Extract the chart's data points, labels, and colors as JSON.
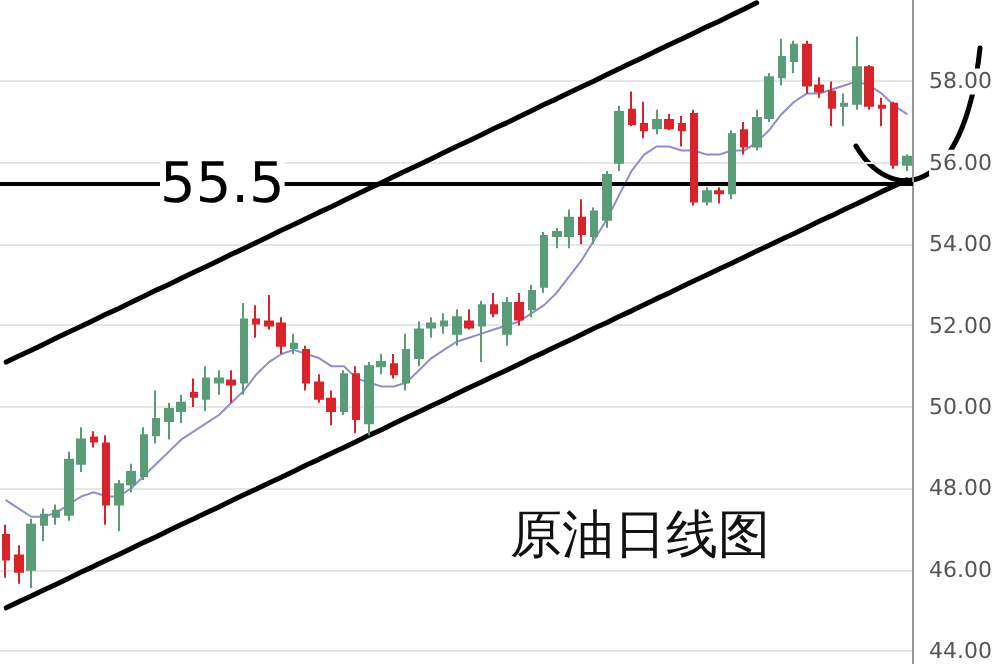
{
  "chart_data": {
    "type": "candlestick",
    "title": "原油日线图",
    "categories": [
      null,
      null,
      null,
      null,
      null,
      null,
      null,
      null,
      null,
      null,
      null,
      null,
      null,
      null,
      null,
      null,
      null,
      null,
      null,
      null,
      null,
      null,
      null,
      null,
      null,
      null,
      null,
      null,
      null,
      null,
      null,
      null,
      null,
      null,
      null,
      null,
      null,
      null,
      null,
      null,
      null,
      null,
      null,
      null,
      null,
      null,
      null,
      null,
      null,
      null,
      null,
      null,
      null,
      null,
      null,
      null,
      null,
      null,
      null,
      null,
      null,
      null,
      null,
      null,
      null,
      null,
      null,
      null,
      null,
      null,
      null,
      null,
      null
    ],
    "ylim": [
      43.7,
      60
    ],
    "yticks": [
      {
        "value": 44,
        "label": "44.00"
      },
      {
        "value": 46,
        "label": "46.00"
      },
      {
        "value": 48,
        "label": "48.00"
      },
      {
        "value": 50,
        "label": "50.00"
      },
      {
        "value": 52,
        "label": "52.00"
      },
      {
        "value": 54,
        "label": "54.00"
      },
      {
        "value": 56,
        "label": "56.00"
      },
      {
        "value": 58,
        "label": "58.00"
      }
    ],
    "grid": "y",
    "tick_labels": "y",
    "colors": [
      "#d9232b",
      "#d9232b",
      "#5b9c78",
      "#5b9c78",
      "#5b9c78",
      "#5b9c78",
      "#5b9c78",
      "#d9232b",
      "#d9232b",
      "#5b9c78",
      "#5b9c78",
      "#5b9c78",
      "#5b9c78",
      "#5b9c78",
      "#5b9c78",
      "#d9232b",
      "#5b9c78",
      "#5b9c78",
      "#d9232b",
      "#5b9c78",
      "#d9232b",
      "#d9232b",
      "#d9232b",
      "#5b9c78",
      "#d9232b",
      "#d9232b",
      "#d9232b",
      "#5b9c78",
      "#d9232b",
      "#5b9c78",
      "#5b9c78",
      "#d9232b",
      "#5b9c78",
      "#5b9c78",
      "#5b9c78",
      "#5b9c78",
      "#5b9c78",
      "#d9232b",
      "#5b9c78",
      "#d9232b",
      "#5b9c78",
      "#d9232b",
      "#5b9c78",
      "#5b9c78",
      "#5b9c78",
      "#5b9c78",
      "#d9232b",
      "#5b9c78",
      "#5b9c78",
      "#5b9c78",
      "#d9232b",
      "#d9232b",
      "#5b9c78",
      "#d9232b",
      "#d9232b",
      "#d9232b",
      "#5b9c78",
      "#d9232b",
      "#5b9c78",
      "#d9232b",
      "#5b9c78",
      "#5b9c78",
      "#5b9c78",
      "#5b9c78",
      "#d9232b",
      "#d9232b",
      "#d9232b",
      "#5b9c78",
      "#5b9c78",
      "#d9232b",
      "#d9232b",
      "#d9232b",
      "#5b9c78"
    ],
    "ref_lines": [
      {
        "axis": "y",
        "value": 55.5,
        "label": "55.5",
        "color": "#000000"
      }
    ],
    "ohlc": [
      [
        46.85,
        47.1,
        45.8,
        46.25
      ],
      [
        46.35,
        46.6,
        45.65,
        45.95
      ],
      [
        46.0,
        47.25,
        45.55,
        47.1
      ],
      [
        47.1,
        47.5,
        46.7,
        47.35
      ],
      [
        47.3,
        47.6,
        47.1,
        47.45
      ],
      [
        47.35,
        48.9,
        47.2,
        48.7
      ],
      [
        48.6,
        49.5,
        48.4,
        49.2
      ],
      [
        49.25,
        49.4,
        49.0,
        49.15
      ],
      [
        49.1,
        49.3,
        47.1,
        47.6
      ],
      [
        47.6,
        48.2,
        46.95,
        48.1
      ],
      [
        48.1,
        48.6,
        47.9,
        48.4
      ],
      [
        48.3,
        49.5,
        48.2,
        49.3
      ],
      [
        49.3,
        50.4,
        49.1,
        49.7
      ],
      [
        49.65,
        50.1,
        49.2,
        49.95
      ],
      [
        49.9,
        50.3,
        49.6,
        50.1
      ],
      [
        50.35,
        50.7,
        50.0,
        50.25
      ],
      [
        50.2,
        51.0,
        49.9,
        50.7
      ],
      [
        50.6,
        50.9,
        50.3,
        50.7
      ],
      [
        50.65,
        50.9,
        50.1,
        50.55
      ],
      [
        50.6,
        52.55,
        50.3,
        52.15
      ],
      [
        52.15,
        52.5,
        51.7,
        52.05
      ],
      [
        52.1,
        52.75,
        51.9,
        52.0
      ],
      [
        52.05,
        52.2,
        51.3,
        51.5
      ],
      [
        51.45,
        51.8,
        51.3,
        51.55
      ],
      [
        51.4,
        51.5,
        50.4,
        50.6
      ],
      [
        50.6,
        50.8,
        50.1,
        50.2
      ],
      [
        50.2,
        50.4,
        49.55,
        49.9
      ],
      [
        49.9,
        50.9,
        49.8,
        50.8
      ],
      [
        50.8,
        51.0,
        49.35,
        49.7
      ],
      [
        49.6,
        51.1,
        49.3,
        51.0
      ],
      [
        51.0,
        51.3,
        50.8,
        51.1
      ],
      [
        51.05,
        51.3,
        50.7,
        50.8
      ],
      [
        50.6,
        51.8,
        50.4,
        51.4
      ],
      [
        51.2,
        52.1,
        51.0,
        51.9
      ],
      [
        51.95,
        52.2,
        51.7,
        52.05
      ],
      [
        52.0,
        52.3,
        51.8,
        52.1
      ],
      [
        51.8,
        52.4,
        51.5,
        52.2
      ],
      [
        52.1,
        52.4,
        51.9,
        51.95
      ],
      [
        52.0,
        52.6,
        51.1,
        52.5
      ],
      [
        52.5,
        52.8,
        52.2,
        52.3
      ],
      [
        51.8,
        52.7,
        51.5,
        52.55
      ],
      [
        52.55,
        52.8,
        52.0,
        52.15
      ],
      [
        52.4,
        53.0,
        52.2,
        52.85
      ],
      [
        52.95,
        54.3,
        52.8,
        54.2
      ],
      [
        54.2,
        54.4,
        53.9,
        54.3
      ],
      [
        54.2,
        54.85,
        53.9,
        54.65
      ],
      [
        54.65,
        55.1,
        54.0,
        54.25
      ],
      [
        54.2,
        54.9,
        54.0,
        54.8
      ],
      [
        54.6,
        55.8,
        54.4,
        55.7
      ],
      [
        56.0,
        57.4,
        55.8,
        57.25
      ],
      [
        57.3,
        57.75,
        56.9,
        56.95
      ],
      [
        56.95,
        57.5,
        56.6,
        56.8
      ],
      [
        56.85,
        57.3,
        56.7,
        57.05
      ],
      [
        57.05,
        57.2,
        56.8,
        56.85
      ],
      [
        56.95,
        57.15,
        56.4,
        56.8
      ],
      [
        57.2,
        57.3,
        54.95,
        55.05
      ],
      [
        55.05,
        55.4,
        54.95,
        55.3
      ],
      [
        55.3,
        55.4,
        55.0,
        55.25
      ],
      [
        55.25,
        56.8,
        55.1,
        56.7
      ],
      [
        56.8,
        57.0,
        56.2,
        56.4
      ],
      [
        56.4,
        57.3,
        56.3,
        57.1
      ],
      [
        57.1,
        58.2,
        57.0,
        58.1
      ],
      [
        58.1,
        59.05,
        57.9,
        58.6
      ],
      [
        58.5,
        59.0,
        58.2,
        58.9
      ],
      [
        58.9,
        59.0,
        57.7,
        57.9
      ],
      [
        57.9,
        58.1,
        57.6,
        57.75
      ],
      [
        57.75,
        58.0,
        56.9,
        57.35
      ],
      [
        57.4,
        57.7,
        56.9,
        57.45
      ],
      [
        57.45,
        59.1,
        57.3,
        58.35
      ],
      [
        58.35,
        58.4,
        57.3,
        57.4
      ],
      [
        57.4,
        57.6,
        56.9,
        57.35
      ],
      [
        57.45,
        57.5,
        55.85,
        55.95
      ],
      [
        55.95,
        56.2,
        55.8,
        56.15
      ]
    ],
    "series": [
      {
        "type": "line",
        "color": "#8e8ec8",
        "values": [
          47.7,
          47.5,
          47.3,
          47.3,
          47.4,
          47.6,
          47.8,
          47.9,
          47.8,
          47.8,
          48.0,
          48.3,
          48.6,
          48.9,
          49.2,
          49.4,
          49.6,
          49.8,
          50.1,
          50.4,
          50.8,
          51.1,
          51.3,
          51.4,
          51.3,
          51.2,
          51.0,
          51.0,
          50.7,
          50.6,
          50.5,
          50.5,
          50.6,
          50.9,
          51.2,
          51.4,
          51.6,
          51.7,
          51.8,
          51.9,
          52.0,
          52.1,
          52.3,
          52.5,
          52.8,
          53.2,
          53.6,
          54.1,
          54.6,
          55.2,
          55.8,
          56.2,
          56.4,
          56.4,
          56.3,
          56.3,
          56.2,
          56.2,
          56.3,
          56.3,
          56.5,
          56.8,
          57.2,
          57.5,
          57.7,
          57.7,
          57.8,
          57.9,
          58.0,
          57.9,
          57.7,
          57.4,
          57.2
        ]
      },
      {
        "type": "line",
        "color": "#000000",
        "values": [
          51.1,
          51.25,
          51.39,
          51.54,
          51.69,
          51.84,
          51.98,
          52.13,
          52.28,
          52.42,
          52.57,
          52.72,
          52.87,
          53.01,
          53.16,
          53.31,
          53.45,
          53.6,
          53.75,
          53.89,
          54.04,
          54.19,
          54.34,
          54.48,
          54.63,
          54.78,
          54.92,
          55.07,
          55.22,
          55.37,
          55.51,
          55.66,
          55.81,
          55.95,
          56.1,
          56.25,
          56.4,
          56.54,
          56.69,
          56.84,
          56.98,
          57.13,
          57.28,
          57.43,
          57.57,
          57.72,
          57.87,
          58.01,
          58.16,
          58.31,
          58.46,
          58.6,
          58.75,
          58.9,
          59.04,
          59.19,
          59.34,
          59.48,
          59.63,
          59.78,
          59.93,
          null,
          null,
          null,
          null,
          null,
          null,
          null,
          null,
          null,
          null,
          null,
          null
        ]
      },
      {
        "type": "line",
        "color": "#000000",
        "values": [
          45.06,
          45.21,
          45.35,
          45.5,
          45.64,
          45.79,
          45.94,
          46.08,
          46.23,
          46.37,
          46.52,
          46.67,
          46.81,
          46.96,
          47.11,
          47.25,
          47.4,
          47.54,
          47.69,
          47.84,
          47.98,
          48.13,
          48.27,
          48.42,
          48.57,
          48.71,
          48.86,
          49.0,
          49.15,
          49.3,
          49.44,
          49.59,
          49.74,
          49.88,
          50.03,
          50.17,
          50.32,
          50.47,
          50.61,
          50.76,
          50.9,
          51.05,
          51.2,
          51.34,
          51.49,
          51.63,
          51.78,
          51.93,
          52.07,
          52.22,
          52.36,
          52.51,
          52.66,
          52.8,
          52.95,
          53.1,
          53.24,
          53.39,
          53.53,
          53.68,
          53.83,
          53.97,
          54.12,
          54.26,
          54.41,
          54.56,
          54.7,
          54.85,
          54.99,
          55.14,
          55.29,
          55.43,
          55.58
        ]
      }
    ]
  }
}
